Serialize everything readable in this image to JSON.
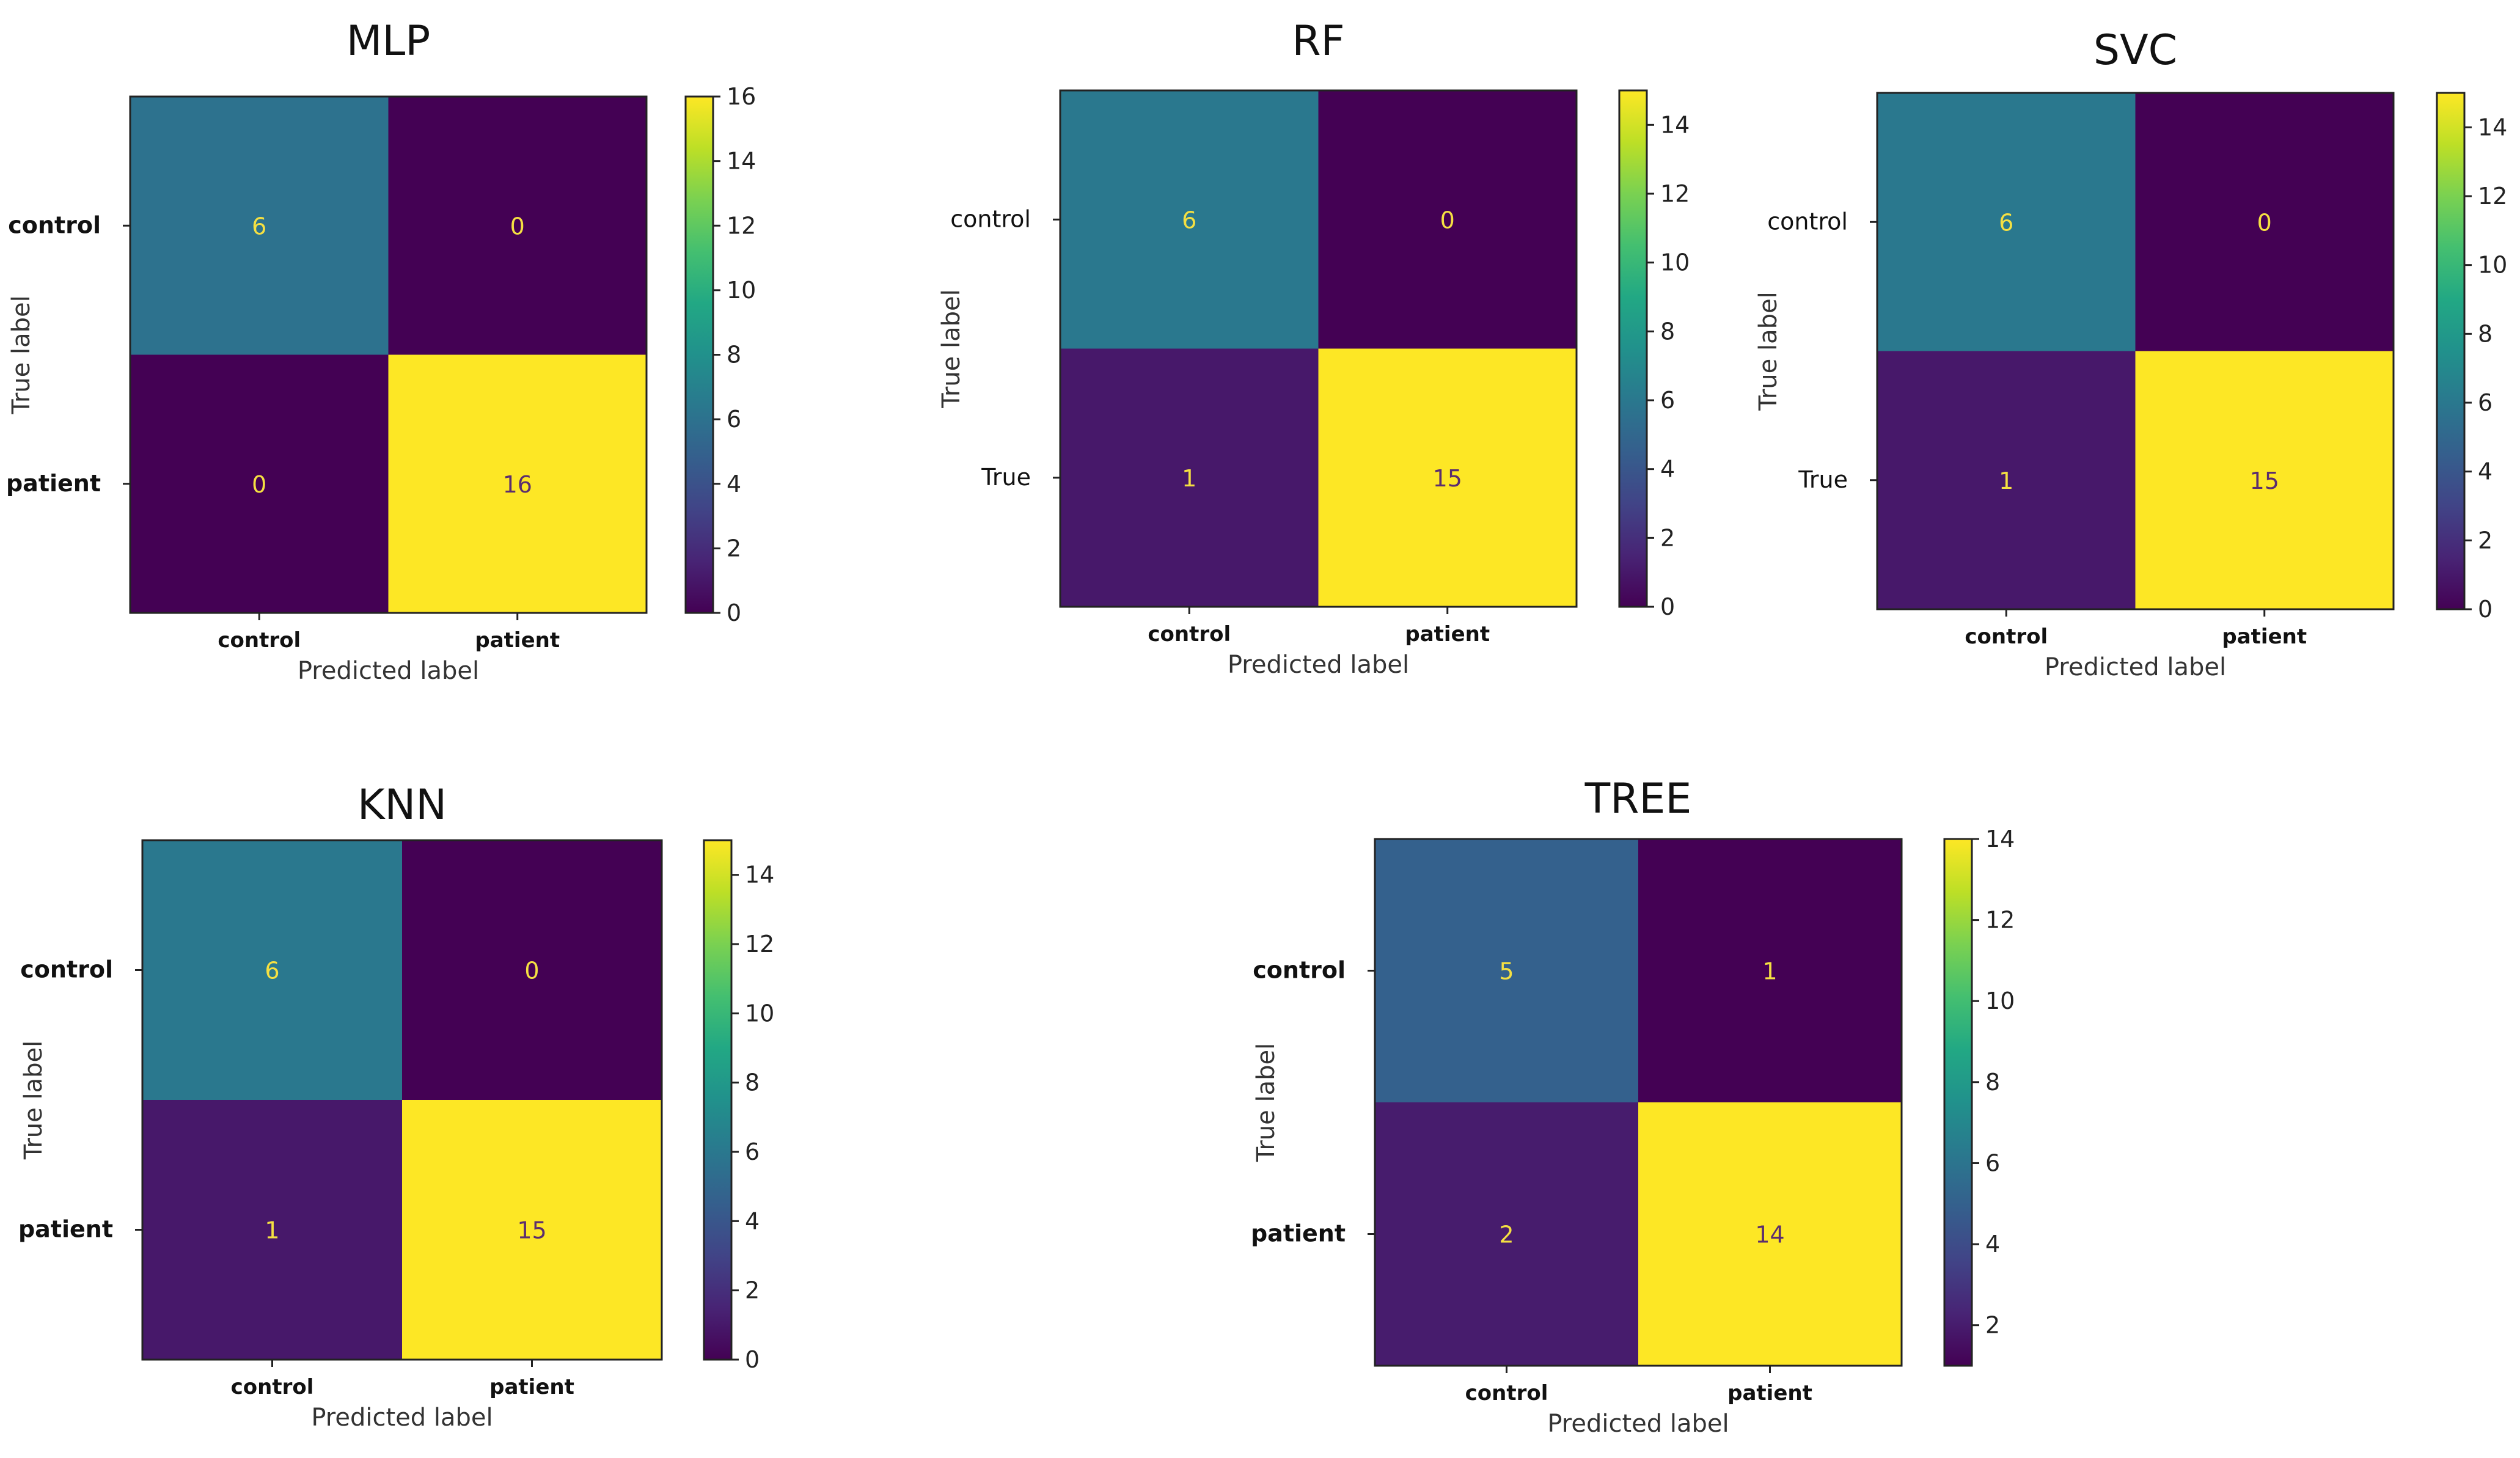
{
  "chart_data": [
    {
      "type": "heatmap",
      "title": "MLP",
      "xlabel": "Predicted label",
      "ylabel": "True label",
      "x_categories": [
        "control",
        "patient"
      ],
      "y_categories": [
        "control",
        "patient"
      ],
      "y_tick_bold": true,
      "values": [
        [
          6,
          0
        ],
        [
          0,
          16
        ]
      ],
      "colorbar": {
        "min": 0,
        "max": 16,
        "ticks": [
          0,
          2,
          4,
          6,
          8,
          10,
          12,
          14,
          16
        ]
      },
      "colormap": "viridis"
    },
    {
      "type": "heatmap",
      "title": "RF",
      "xlabel": "Predicted label",
      "ylabel": "True label",
      "x_categories": [
        "control",
        "patient"
      ],
      "y_categories": [
        "control",
        "True"
      ],
      "y_tick_bold": false,
      "values": [
        [
          6,
          0
        ],
        [
          1,
          15
        ]
      ],
      "colorbar": {
        "min": 0,
        "max": 15,
        "ticks": [
          0,
          2,
          4,
          6,
          8,
          10,
          12,
          14
        ]
      },
      "colormap": "viridis"
    },
    {
      "type": "heatmap",
      "title": "SVC",
      "xlabel": "Predicted label",
      "ylabel": "True label",
      "x_categories": [
        "control",
        "patient"
      ],
      "y_categories": [
        "control",
        "True"
      ],
      "y_tick_bold": false,
      "values": [
        [
          6,
          0
        ],
        [
          1,
          15
        ]
      ],
      "colorbar": {
        "min": 0,
        "max": 15,
        "ticks": [
          0,
          2,
          4,
          6,
          8,
          10,
          12,
          14
        ]
      },
      "colormap": "viridis"
    },
    {
      "type": "heatmap",
      "title": "KNN",
      "xlabel": "Predicted label",
      "ylabel": "True label",
      "x_categories": [
        "control",
        "patient"
      ],
      "y_categories": [
        "control",
        "patient"
      ],
      "y_tick_bold": true,
      "values": [
        [
          6,
          0
        ],
        [
          1,
          15
        ]
      ],
      "colorbar": {
        "min": 0,
        "max": 15,
        "ticks": [
          0,
          2,
          4,
          6,
          8,
          10,
          12,
          14
        ]
      },
      "colormap": "viridis"
    },
    {
      "type": "heatmap",
      "title": "TREE",
      "xlabel": "Predicted label",
      "ylabel": "True label",
      "x_categories": [
        "control",
        "patient"
      ],
      "y_categories": [
        "control",
        "patient"
      ],
      "y_tick_bold": true,
      "values": [
        [
          5,
          1
        ],
        [
          2,
          14
        ]
      ],
      "colorbar": {
        "min": 1,
        "max": 14,
        "ticks": [
          2,
          4,
          6,
          8,
          10,
          12,
          14
        ]
      },
      "colormap": "viridis"
    }
  ]
}
